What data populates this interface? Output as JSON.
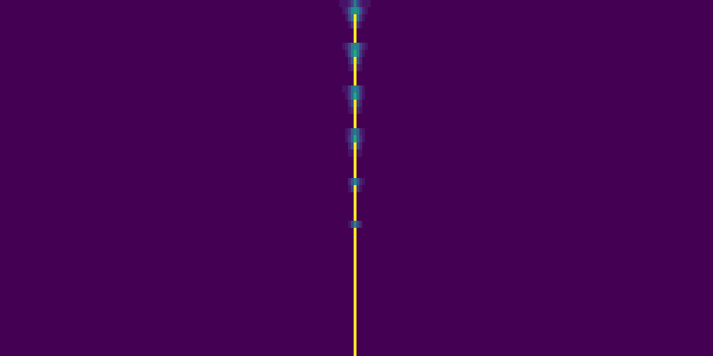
{
  "chart_data": {
    "type": "heatmap",
    "color": "Viridis",
    "tick_labels": false,
    "grid": false,
    "xlim": [
      -0.5,
      249.5
    ],
    "ylim": [
      49.5,
      -0.5
    ],
    "zlim": [
      0,
      1
    ],
    "x": [
      119,
      120,
      121,
      122,
      123,
      124,
      125,
      126,
      127,
      128,
      129
    ],
    "y": [
      0,
      1,
      2,
      3,
      4,
      5,
      6,
      7,
      8,
      9,
      10,
      11,
      12,
      13,
      14,
      15,
      16,
      17,
      18,
      19,
      20,
      21,
      22,
      23,
      24,
      25,
      26,
      27,
      28,
      29,
      30,
      31,
      32,
      33,
      34,
      35,
      36,
      37,
      38,
      39,
      40,
      41,
      42,
      43,
      44,
      45,
      46,
      47,
      48,
      49
    ],
    "z": [
      [
        0.05,
        0.05,
        0.05,
        0.1,
        0.2,
        0.4,
        0.2,
        0.1,
        0.05,
        0.05,
        0.05
      ],
      [
        0,
        0.05,
        0.1,
        0.25,
        0.45,
        0.5,
        0.45,
        0.25,
        0.1,
        0.05,
        0
      ],
      [
        0,
        0,
        0.05,
        0.2,
        0.35,
        1,
        0.35,
        0.15,
        0.05,
        0,
        0
      ],
      [
        0,
        0,
        0,
        0.05,
        0.15,
        1,
        0.15,
        0.05,
        0,
        0,
        0
      ],
      [
        0,
        0,
        0,
        0,
        0,
        1,
        0,
        0,
        0,
        0,
        0
      ],
      [
        0,
        0,
        0,
        0,
        0,
        1,
        0,
        0,
        0,
        0,
        0
      ],
      [
        0,
        0.05,
        0.1,
        0.2,
        0.4,
        0.45,
        0.4,
        0.2,
        0.1,
        0.05,
        0
      ],
      [
        0,
        0,
        0.05,
        0.2,
        0.4,
        0.6,
        0.4,
        0.15,
        0.05,
        0,
        0
      ],
      [
        0,
        0,
        0,
        0.1,
        0.25,
        1,
        0.25,
        0.1,
        0,
        0,
        0
      ],
      [
        0,
        0,
        0,
        0.05,
        0.1,
        1,
        0.1,
        0.05,
        0,
        0,
        0
      ],
      [
        0,
        0,
        0,
        0,
        0,
        1,
        0,
        0,
        0,
        0,
        0
      ],
      [
        0,
        0,
        0,
        0,
        0,
        1,
        0,
        0,
        0,
        0,
        0
      ],
      [
        0,
        0.05,
        0.05,
        0.15,
        0.35,
        0.45,
        0.35,
        0.15,
        0.05,
        0,
        0
      ],
      [
        0,
        0,
        0.05,
        0.15,
        0.35,
        0.6,
        0.35,
        0.15,
        0.05,
        0,
        0
      ],
      [
        0,
        0,
        0,
        0.1,
        0.2,
        1,
        0.2,
        0.1,
        0,
        0,
        0
      ],
      [
        0,
        0,
        0,
        0.05,
        0.1,
        1,
        0.1,
        0.05,
        0,
        0,
        0
      ],
      [
        0,
        0,
        0,
        0,
        0,
        1,
        0,
        0,
        0,
        0,
        0
      ],
      [
        0,
        0,
        0,
        0,
        0,
        1,
        0,
        0,
        0,
        0,
        0
      ],
      [
        0,
        0,
        0.05,
        0.1,
        0.3,
        0.4,
        0.3,
        0.1,
        0.05,
        0,
        0
      ],
      [
        0,
        0,
        0.05,
        0.15,
        0.3,
        0.6,
        0.3,
        0.15,
        0.05,
        0,
        0
      ],
      [
        0,
        0,
        0,
        0.1,
        0.2,
        1,
        0.2,
        0.1,
        0,
        0,
        0
      ],
      [
        0,
        0,
        0,
        0.05,
        0.05,
        1,
        0.05,
        0.05,
        0,
        0,
        0
      ],
      [
        0,
        0,
        0,
        0,
        0,
        1,
        0,
        0,
        0,
        0,
        0
      ],
      [
        0,
        0,
        0,
        0,
        0,
        1,
        0,
        0,
        0,
        0,
        0
      ],
      [
        0,
        0,
        0,
        0,
        0,
        1,
        0,
        0,
        0,
        0,
        0
      ],
      [
        0,
        0,
        0,
        0.1,
        0.25,
        0.45,
        0.25,
        0.1,
        0.05,
        0,
        0
      ],
      [
        0,
        0,
        0,
        0.05,
        0.15,
        1,
        0.15,
        0.05,
        0,
        0,
        0
      ],
      [
        0,
        0,
        0,
        0,
        0,
        1,
        0,
        0,
        0,
        0,
        0
      ],
      [
        0,
        0,
        0,
        0,
        0,
        1,
        0,
        0,
        0,
        0,
        0
      ],
      [
        0,
        0,
        0,
        0,
        0,
        1,
        0,
        0,
        0,
        0,
        0
      ],
      [
        0,
        0,
        0,
        0,
        0,
        1,
        0,
        0,
        0,
        0,
        0
      ],
      [
        0,
        0,
        0,
        0.05,
        0.2,
        0.45,
        0.2,
        0.1,
        0,
        0,
        0
      ],
      [
        0,
        0,
        0,
        0,
        0,
        1,
        0,
        0,
        0,
        0,
        0
      ],
      [
        0,
        0,
        0,
        0,
        0,
        1,
        0,
        0,
        0,
        0,
        0
      ],
      [
        0,
        0,
        0,
        0,
        0,
        1,
        0,
        0,
        0,
        0,
        0
      ],
      [
        0,
        0,
        0,
        0,
        0,
        1,
        0,
        0,
        0,
        0,
        0
      ],
      [
        0,
        0,
        0,
        0,
        0,
        1,
        0,
        0,
        0,
        0,
        0
      ],
      [
        0,
        0,
        0,
        0,
        0,
        1,
        0,
        0,
        0,
        0,
        0
      ],
      [
        0,
        0,
        0,
        0,
        0,
        1,
        0,
        0,
        0,
        0,
        0
      ],
      [
        0,
        0,
        0,
        0,
        0,
        1,
        0,
        0,
        0,
        0,
        0
      ],
      [
        0,
        0,
        0,
        0,
        0,
        1,
        0,
        0,
        0,
        0,
        0
      ],
      [
        0,
        0,
        0,
        0,
        0,
        1,
        0,
        0,
        0,
        0,
        0
      ],
      [
        0,
        0,
        0,
        0,
        0,
        1,
        0,
        0,
        0,
        0,
        0
      ],
      [
        0,
        0,
        0,
        0,
        0,
        1,
        0,
        0,
        0,
        0,
        0
      ],
      [
        0,
        0,
        0,
        0,
        0,
        1,
        0,
        0,
        0,
        0,
        0
      ],
      [
        0,
        0,
        0,
        0,
        0,
        1,
        0,
        0,
        0,
        0,
        0
      ],
      [
        0,
        0,
        0,
        0,
        0,
        1,
        0,
        0,
        0,
        0,
        0
      ],
      [
        0,
        0,
        0,
        0,
        0,
        1,
        0,
        0,
        0,
        0,
        0
      ],
      [
        0,
        0,
        0,
        0,
        0,
        1,
        0,
        0,
        0,
        0,
        0
      ],
      [
        0,
        0,
        0,
        0,
        0,
        1,
        0,
        0,
        0,
        0,
        0
      ]
    ]
  }
}
